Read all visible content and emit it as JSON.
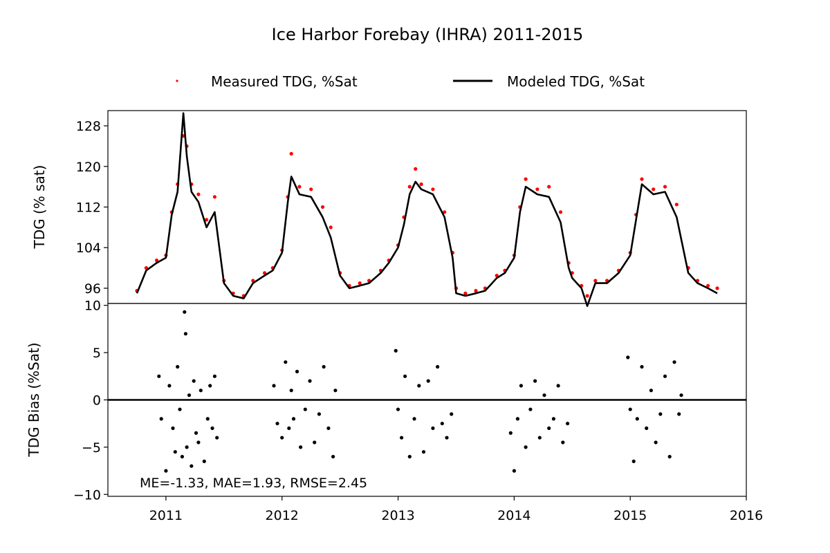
{
  "figure": {
    "title": "Ice Harbor Forebay (IHRA) 2011-2015",
    "legend": [
      {
        "label": "Measured TDG, %Sat",
        "color": "#ff0000",
        "marker": "point"
      },
      {
        "label": "Modeled TDG, %Sat",
        "color": "#000000",
        "marker": "line"
      }
    ],
    "stats_annotation": "ME=-1.33, MAE=1.93, RMSE=2.45"
  },
  "chart_data": [
    {
      "type": "line",
      "panel": "top",
      "ylabel": "TDG (% sat)",
      "xlabel": "",
      "xlim": [
        2010.5,
        2016.0
      ],
      "ylim": [
        93.0,
        131.0
      ],
      "yticks": [
        96,
        104,
        112,
        120,
        128
      ],
      "xticks": [
        2011,
        2012,
        2013,
        2014,
        2015,
        2016
      ],
      "grid": false,
      "legend_position": "top-center",
      "series": [
        {
          "name": "Measured TDG, %Sat",
          "color": "#ff0000",
          "style": "points",
          "x": [
            2010.75,
            2010.83,
            2010.92,
            2011.0,
            2011.05,
            2011.1,
            2011.15,
            2011.18,
            2011.22,
            2011.28,
            2011.35,
            2011.42,
            2011.5,
            2011.58,
            2011.67,
            2011.75,
            2011.85,
            2011.92,
            2012.0,
            2012.05,
            2012.08,
            2012.15,
            2012.25,
            2012.35,
            2012.42,
            2012.5,
            2012.58,
            2012.67,
            2012.75,
            2012.85,
            2012.92,
            2013.0,
            2013.05,
            2013.1,
            2013.15,
            2013.2,
            2013.3,
            2013.4,
            2013.47,
            2013.5,
            2013.58,
            2013.67,
            2013.75,
            2013.85,
            2013.92,
            2014.0,
            2014.05,
            2014.1,
            2014.2,
            2014.3,
            2014.4,
            2014.47,
            2014.5,
            2014.58,
            2014.63,
            2014.7,
            2014.8,
            2014.9,
            2015.0,
            2015.05,
            2015.1,
            2015.2,
            2015.3,
            2015.4,
            2015.5,
            2015.58,
            2015.67,
            2015.75
          ],
          "y": [
            95.5,
            100.0,
            101.5,
            102.5,
            111.0,
            116.5,
            126.0,
            124.0,
            116.5,
            114.5,
            109.5,
            114.0,
            97.5,
            95.0,
            94.5,
            97.5,
            99.0,
            100.0,
            103.5,
            114.0,
            122.5,
            116.0,
            115.5,
            112.0,
            108.0,
            99.0,
            96.5,
            97.0,
            97.5,
            99.5,
            101.5,
            104.5,
            110.0,
            116.0,
            119.5,
            116.5,
            115.5,
            111.0,
            103.0,
            96.0,
            95.0,
            95.5,
            96.0,
            98.5,
            99.5,
            102.5,
            112.0,
            117.5,
            115.5,
            116.0,
            111.0,
            101.0,
            99.0,
            96.5,
            94.5,
            97.5,
            97.5,
            99.5,
            103.0,
            110.5,
            117.5,
            115.5,
            116.0,
            112.5,
            100.0,
            97.5,
            96.5,
            96.0
          ]
        },
        {
          "name": "Modeled TDG, %Sat",
          "color": "#000000",
          "style": "line",
          "x": [
            2010.75,
            2010.83,
            2010.92,
            2011.0,
            2011.05,
            2011.1,
            2011.15,
            2011.18,
            2011.22,
            2011.28,
            2011.35,
            2011.42,
            2011.5,
            2011.58,
            2011.67,
            2011.75,
            2011.85,
            2011.92,
            2012.0,
            2012.05,
            2012.08,
            2012.15,
            2012.25,
            2012.35,
            2012.42,
            2012.5,
            2012.58,
            2012.67,
            2012.75,
            2012.85,
            2012.92,
            2013.0,
            2013.05,
            2013.1,
            2013.15,
            2013.2,
            2013.3,
            2013.4,
            2013.47,
            2013.5,
            2013.58,
            2013.67,
            2013.75,
            2013.85,
            2013.92,
            2014.0,
            2014.05,
            2014.1,
            2014.2,
            2014.3,
            2014.4,
            2014.47,
            2014.5,
            2014.58,
            2014.63,
            2014.7,
            2014.8,
            2014.9,
            2015.0,
            2015.05,
            2015.1,
            2015.2,
            2015.3,
            2015.4,
            2015.5,
            2015.58,
            2015.67,
            2015.75
          ],
          "y": [
            95.0,
            99.5,
            101.0,
            102.0,
            110.5,
            115.0,
            130.5,
            122.0,
            115.0,
            113.0,
            108.0,
            111.0,
            97.0,
            94.5,
            94.0,
            97.0,
            98.5,
            99.5,
            103.0,
            113.0,
            118.0,
            114.5,
            114.0,
            110.0,
            106.0,
            98.5,
            96.0,
            96.5,
            97.0,
            99.0,
            101.0,
            104.0,
            108.5,
            114.5,
            117.0,
            115.5,
            114.5,
            110.0,
            102.0,
            95.0,
            94.5,
            95.0,
            95.5,
            98.0,
            99.0,
            102.0,
            111.0,
            116.0,
            114.5,
            114.0,
            109.0,
            100.0,
            98.0,
            96.0,
            92.5,
            97.0,
            97.0,
            99.0,
            102.5,
            109.5,
            116.5,
            114.5,
            115.0,
            110.0,
            99.0,
            97.0,
            96.0,
            95.0
          ]
        }
      ]
    },
    {
      "type": "scatter",
      "panel": "bottom",
      "ylabel": "TDG Bias (%Sat)",
      "xlabel": "",
      "xlim": [
        2010.5,
        2016.0
      ],
      "ylim": [
        -10.2,
        10.2
      ],
      "yticks": [
        -10,
        -5,
        0,
        5,
        10
      ],
      "xticks": [
        2011,
        2012,
        2013,
        2014,
        2015,
        2016
      ],
      "grid": false,
      "reference_line": 0,
      "series": [
        {
          "name": "",
          "color": "#000000",
          "style": "points",
          "x": [
            2010.94,
            2010.96,
            2011.0,
            2011.03,
            2011.06,
            2011.08,
            2011.1,
            2011.12,
            2011.14,
            2011.16,
            2011.17,
            2011.18,
            2011.2,
            2011.22,
            2011.24,
            2011.26,
            2011.28,
            2011.3,
            2011.33,
            2011.36,
            2011.38,
            2011.4,
            2011.42,
            2011.44,
            2011.93,
            2011.96,
            2012.0,
            2012.03,
            2012.06,
            2012.08,
            2012.1,
            2012.13,
            2012.16,
            2012.2,
            2012.24,
            2012.28,
            2012.32,
            2012.36,
            2012.4,
            2012.44,
            2012.46,
            2012.98,
            2013.0,
            2013.03,
            2013.06,
            2013.1,
            2013.14,
            2013.18,
            2013.22,
            2013.26,
            2013.3,
            2013.34,
            2013.38,
            2013.42,
            2013.46,
            2013.97,
            2014.0,
            2014.03,
            2014.06,
            2014.1,
            2014.14,
            2014.18,
            2014.22,
            2014.26,
            2014.3,
            2014.34,
            2014.38,
            2014.42,
            2014.46,
            2014.98,
            2015.0,
            2015.03,
            2015.06,
            2015.1,
            2015.14,
            2015.18,
            2015.22,
            2015.26,
            2015.3,
            2015.34,
            2015.38,
            2015.42,
            2015.44
          ],
          "y": [
            2.5,
            -2.0,
            -7.5,
            1.5,
            -3.0,
            -5.5,
            3.5,
            -1.0,
            -6.0,
            9.3,
            7.0,
            -5.0,
            0.5,
            -7.0,
            2.0,
            -3.5,
            -4.5,
            1.0,
            -6.5,
            -2.0,
            1.5,
            -3.0,
            2.5,
            -4.0,
            1.5,
            -2.5,
            -4.0,
            4.0,
            -3.0,
            1.0,
            -2.0,
            3.0,
            -5.0,
            -1.0,
            2.0,
            -4.5,
            -1.5,
            3.5,
            -3.0,
            -6.0,
            1.0,
            5.2,
            -1.0,
            -4.0,
            2.5,
            -6.0,
            -2.0,
            1.5,
            -5.5,
            2.0,
            -3.0,
            3.5,
            -2.5,
            -4.0,
            -1.5,
            -3.5,
            -7.5,
            -2.0,
            1.5,
            -5.0,
            -1.0,
            2.0,
            -4.0,
            0.5,
            -3.0,
            -2.0,
            1.5,
            -4.5,
            -2.5,
            4.5,
            -1.0,
            -6.5,
            -2.0,
            3.5,
            -3.0,
            1.0,
            -4.5,
            -1.5,
            2.5,
            -6.0,
            4.0,
            -1.5,
            0.5
          ]
        }
      ]
    }
  ]
}
